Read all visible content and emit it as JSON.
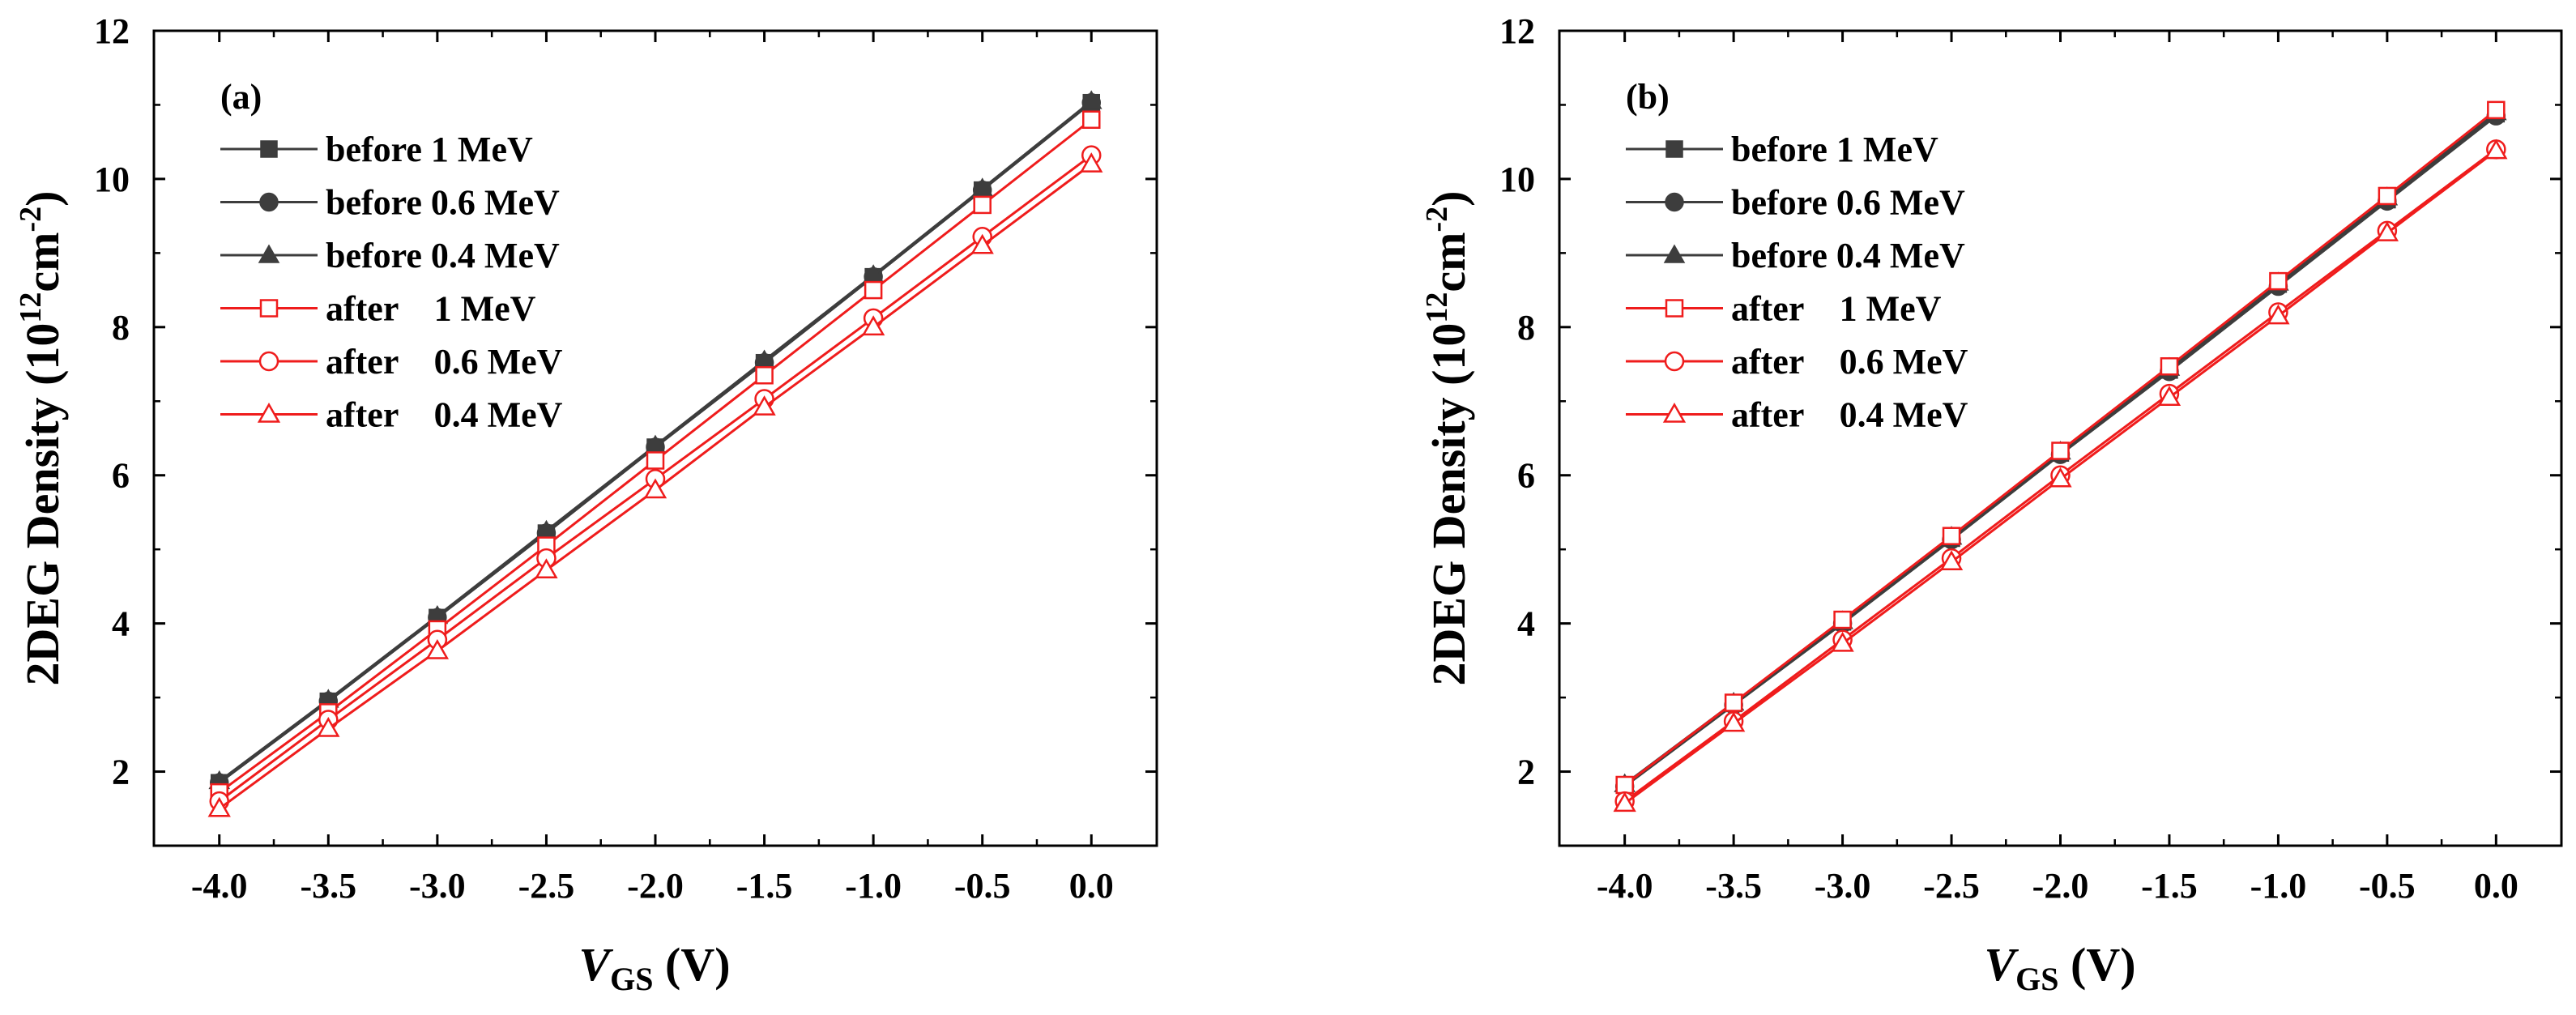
{
  "colors": {
    "before": "#3d3d3d",
    "after": "#ef1c1c"
  },
  "chart_data": [
    {
      "type": "line",
      "panel_label": "(a)",
      "x": [
        -4.0,
        -3.5,
        -3.0,
        -2.5,
        -2.0,
        -1.5,
        -1.0,
        -0.5,
        0.0
      ],
      "x_tick_labels": [
        "-4.0",
        "-3.5",
        "-3.0",
        "-2.5",
        "-2.0",
        "-1.5",
        "-1.0",
        "-0.5",
        "0.0"
      ],
      "xlim": [
        -4.3,
        0.3
      ],
      "ylim": [
        1,
        12
      ],
      "y_ticks": [
        2,
        4,
        6,
        8,
        10,
        12
      ],
      "y_tick_labels": [
        "2",
        "4",
        "6",
        "8",
        "10",
        "12"
      ],
      "xlabel": {
        "main": "V",
        "sub": "GS",
        "unit": " (V)"
      },
      "ylabel": {
        "prefix": "2DEG Density (10",
        "sup1": "12",
        "mid": "cm",
        "sup2": "-2",
        "suffix": ")"
      },
      "legend_position": "top-left",
      "series": [
        {
          "name": "before 1 MeV",
          "group": "before",
          "marker": "square-filled",
          "values": [
            1.85,
            2.95,
            4.08,
            5.22,
            6.38,
            7.52,
            8.68,
            9.85,
            11.03
          ]
        },
        {
          "name": "before 0.6 MeV",
          "group": "before",
          "marker": "circle-filled",
          "values": [
            1.85,
            2.95,
            4.08,
            5.22,
            6.38,
            7.52,
            8.68,
            9.85,
            11.03
          ]
        },
        {
          "name": "before 0.4 MeV",
          "group": "before",
          "marker": "triangle-filled",
          "values": [
            1.87,
            2.97,
            4.1,
            5.25,
            6.4,
            7.55,
            8.7,
            9.87,
            11.05
          ]
        },
        {
          "name": "after    1 MeV",
          "group": "after",
          "marker": "square-open",
          "values": [
            1.72,
            2.8,
            3.92,
            5.05,
            6.2,
            7.35,
            8.5,
            9.65,
            10.8
          ]
        },
        {
          "name": "after    0.6 MeV",
          "group": "after",
          "marker": "circle-open",
          "values": [
            1.6,
            2.7,
            3.78,
            4.88,
            5.95,
            7.03,
            8.12,
            9.22,
            10.32
          ]
        },
        {
          "name": "after    0.4 MeV",
          "group": "after",
          "marker": "triangle-open",
          "values": [
            1.5,
            2.58,
            3.63,
            4.72,
            5.8,
            6.92,
            8.0,
            9.1,
            10.2
          ]
        }
      ]
    },
    {
      "type": "line",
      "panel_label": "(b)",
      "x": [
        -4.0,
        -3.5,
        -3.0,
        -2.5,
        -2.0,
        -1.5,
        -1.0,
        -0.5,
        0.0
      ],
      "x_tick_labels": [
        "-4.0",
        "-3.5",
        "-3.0",
        "-2.5",
        "-2.0",
        "-1.5",
        "-1.0",
        "-0.5",
        "0.0"
      ],
      "xlim": [
        -4.3,
        0.3
      ],
      "ylim": [
        1,
        12
      ],
      "y_ticks": [
        2,
        4,
        6,
        8,
        10,
        12
      ],
      "y_tick_labels": [
        "2",
        "4",
        "6",
        "8",
        "10",
        "12"
      ],
      "xlabel": {
        "main": "V",
        "sub": "GS",
        "unit": " (V)"
      },
      "ylabel": {
        "prefix": "2DEG Density (10",
        "sup1": "12",
        "mid": "cm",
        "sup2": "-2",
        "suffix": ")"
      },
      "legend_position": "top-left",
      "series": [
        {
          "name": "before 1 MeV",
          "group": "before",
          "marker": "square-filled",
          "values": [
            1.82,
            2.92,
            4.02,
            5.15,
            6.3,
            7.42,
            8.58,
            9.72,
            10.88
          ]
        },
        {
          "name": "before 0.6 MeV",
          "group": "before",
          "marker": "circle-filled",
          "values": [
            1.8,
            2.9,
            4.0,
            5.13,
            6.28,
            7.4,
            8.55,
            9.7,
            10.85
          ]
        },
        {
          "name": "before 0.4 MeV",
          "group": "before",
          "marker": "triangle-filled",
          "values": [
            1.83,
            2.93,
            4.03,
            5.17,
            6.32,
            7.45,
            8.6,
            9.75,
            10.9
          ]
        },
        {
          "name": "after    1 MeV",
          "group": "after",
          "marker": "square-open",
          "values": [
            1.82,
            2.93,
            4.05,
            5.18,
            6.33,
            7.47,
            8.62,
            9.77,
            10.93
          ]
        },
        {
          "name": "after    0.6 MeV",
          "group": "after",
          "marker": "circle-open",
          "values": [
            1.6,
            2.68,
            3.78,
            4.88,
            6.0,
            7.1,
            8.2,
            9.3,
            10.4
          ]
        },
        {
          "name": "after    0.4 MeV",
          "group": "after",
          "marker": "triangle-open",
          "values": [
            1.57,
            2.65,
            3.73,
            4.83,
            5.95,
            7.05,
            8.15,
            9.27,
            10.38
          ]
        }
      ]
    }
  ]
}
